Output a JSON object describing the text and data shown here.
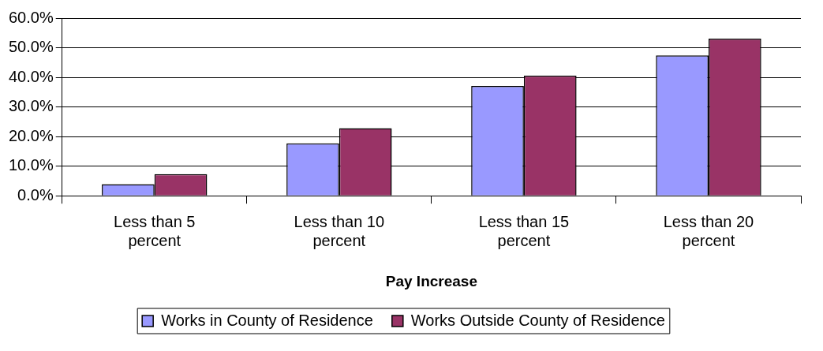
{
  "chart_data": {
    "type": "bar",
    "xlabel": "Pay Increase",
    "categories": [
      "Less than 5 percent",
      "Less than 10 percent",
      "Less than 15 percent",
      "Less than 20 percent"
    ],
    "series": [
      {
        "name": "Works in County of Residence",
        "color": "#9999ff",
        "values": [
          3.9,
          17.7,
          37.1,
          47.4
        ]
      },
      {
        "name": "Works Outside County of Residence",
        "color": "#993366",
        "values": [
          7.3,
          22.8,
          40.6,
          53.1
        ]
      }
    ],
    "ylim": [
      0,
      60
    ],
    "yticks": [
      {
        "value": 0,
        "label": "0.0%"
      },
      {
        "value": 10,
        "label": "10.0%"
      },
      {
        "value": 20,
        "label": "20.0%"
      },
      {
        "value": 30,
        "label": "30.0%"
      },
      {
        "value": 40,
        "label": "40.0%"
      },
      {
        "value": 50,
        "label": "50.0%"
      },
      {
        "value": 60,
        "label": "60.0%"
      }
    ],
    "grid": "y",
    "legend": "bottom"
  }
}
